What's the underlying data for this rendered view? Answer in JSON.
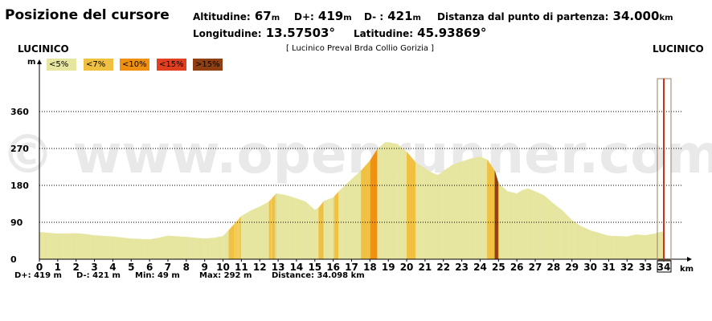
{
  "header": {
    "title": "Posizione del cursore",
    "altitude_label": "Altitudine:",
    "altitude_value": "67",
    "altitude_unit": "m",
    "dplus_label": "D+:",
    "dplus_value": "419",
    "dplus_unit": "m",
    "dminus_label": "D- :",
    "dminus_value": "421",
    "dminus_unit": "m",
    "distance_label": "Distanza dal punto di partenza:",
    "distance_value": "34.000",
    "distance_unit": "km",
    "longitude_label": "Longitudine:",
    "longitude_value": "13.57503°",
    "latitude_label": "Latitudine:",
    "latitude_value": "45.93869°"
  },
  "start_location": "LUCINICO",
  "end_location": "LUCINICO",
  "route_subtitle": "[ Lucinico Preval Brda Collio Gorizia ]",
  "watermark": "© www.openrunner.com",
  "legend": [
    {
      "label": "<5%",
      "color": "#e6e6a0"
    },
    {
      "label": "<7%",
      "color": "#f0c040"
    },
    {
      "label": "<10%",
      "color": "#f09010"
    },
    {
      "label": "<15%",
      "color": "#e04020"
    },
    {
      "label": ">15%",
      "color": "#904010"
    }
  ],
  "stats": {
    "dplus": "D+: 419 m",
    "dminus": "D-: 421 m",
    "min": "Min: 49 m",
    "max": "Max: 292 m",
    "distance": "Distance: 34.098 km"
  },
  "chart_data": {
    "type": "area",
    "xlabel": "km",
    "ylabel": "m",
    "xlim": [
      0,
      34
    ],
    "ylim": [
      0,
      400
    ],
    "x_ticks": [
      0,
      1,
      2,
      3,
      4,
      5,
      6,
      7,
      8,
      9,
      10,
      11,
      12,
      13,
      14,
      15,
      16,
      17,
      18,
      19,
      20,
      21,
      22,
      23,
      24,
      25,
      26,
      27,
      28,
      29,
      30,
      31,
      32,
      33,
      34
    ],
    "y_ticks": [
      0,
      90,
      180,
      270,
      360
    ],
    "grid": "horizontal dotted",
    "cursor_km": 34.0,
    "series": [
      {
        "x": [
          0,
          1,
          2,
          2.5,
          3,
          4,
          5,
          6,
          6.5,
          7,
          8,
          9,
          9.5,
          10,
          10.3,
          10.6,
          11,
          11.5,
          12,
          12.5,
          12.9,
          13.5,
          14,
          14.5,
          15,
          15.2,
          15.5,
          16,
          16.3,
          16.6,
          17,
          17.5,
          18,
          18.4,
          18.8,
          19,
          19.5,
          20,
          20.5,
          21,
          21.3,
          21.7,
          22,
          22.5,
          23,
          23.5,
          24,
          24.4,
          24.8,
          25,
          25.5,
          26,
          26.3,
          26.6,
          27,
          27.5,
          28,
          28.5,
          29,
          29.5,
          30,
          31,
          32,
          32.5,
          33,
          33.5,
          33.8,
          34
        ],
        "y": [
          66,
          62,
          63,
          61,
          58,
          55,
          50,
          48,
          52,
          57,
          54,
          50,
          52,
          56,
          70,
          85,
          105,
          118,
          128,
          140,
          160,
          155,
          148,
          140,
          120,
          125,
          142,
          150,
          165,
          178,
          195,
          215,
          240,
          268,
          284,
          285,
          280,
          262,
          235,
          222,
          212,
          205,
          215,
          230,
          238,
          245,
          250,
          242,
          215,
          185,
          165,
          160,
          168,
          172,
          165,
          155,
          135,
          118,
          95,
          80,
          70,
          57,
          55,
          60,
          58,
          62,
          66,
          67
        ]
      }
    ]
  }
}
